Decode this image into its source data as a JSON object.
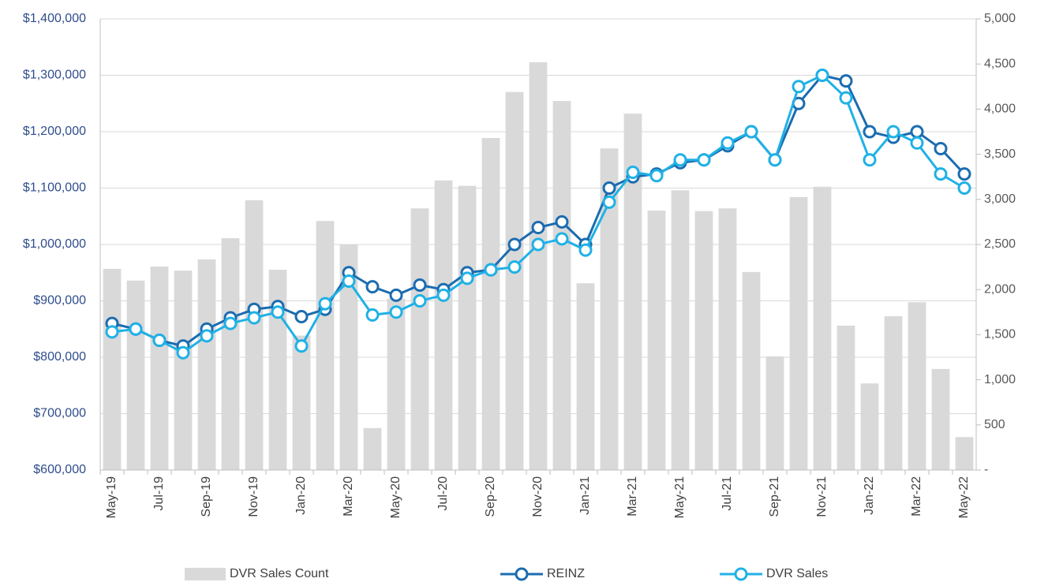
{
  "chart_data": {
    "type": "combo",
    "categories": [
      "May-19",
      null,
      "Jul-19",
      null,
      "Sep-19",
      null,
      "Nov-19",
      null,
      "Jan-20",
      null,
      "Mar-20",
      null,
      "May-20",
      null,
      "Jul-20",
      null,
      "Sep-20",
      null,
      "Nov-20",
      null,
      "Jan-21",
      null,
      "Mar-21",
      null,
      "May-21",
      null,
      "Jul-21",
      null,
      "Sep-21",
      null,
      "Nov-21",
      null,
      "Jan-22",
      null,
      "Mar-22",
      null,
      "May-22"
    ],
    "series": [
      {
        "name": "DVR Sales Count",
        "type": "bar",
        "axis": "y2",
        "color": "#d9d9d9",
        "values": [
          2230,
          2100,
          2255,
          2210,
          2335,
          2570,
          2990,
          2220,
          1490,
          2760,
          2500,
          465,
          1900,
          2900,
          3210,
          3150,
          3680,
          4190,
          4520,
          4090,
          2070,
          3565,
          3950,
          2875,
          3100,
          2870,
          2900,
          2195,
          1260,
          3025,
          3140,
          1600,
          960,
          1705,
          1860,
          1120,
          365
        ]
      },
      {
        "name": "REINZ",
        "type": "line",
        "axis": "y",
        "color": "#1b6cb0",
        "values": [
          860000,
          850000,
          830000,
          820000,
          850000,
          870000,
          885000,
          890000,
          872000,
          885000,
          950000,
          925000,
          910000,
          928000,
          920000,
          950000,
          955000,
          1000000,
          1030000,
          1040000,
          1000000,
          1100000,
          1120000,
          1125000,
          1145000,
          1150000,
          1175000,
          1200000,
          1150000,
          1250000,
          1300000,
          1290000,
          1200000,
          1190000,
          1200000,
          1170000,
          1125000
        ]
      },
      {
        "name": "DVR Sales",
        "type": "line",
        "axis": "y",
        "color": "#1fb1e6",
        "values": [
          845000,
          850000,
          830000,
          808000,
          838000,
          860000,
          870000,
          880000,
          820000,
          895000,
          935000,
          875000,
          880000,
          900000,
          910000,
          940000,
          955000,
          960000,
          1000000,
          1010000,
          990000,
          1075000,
          1128000,
          1122000,
          1150000,
          1150000,
          1180000,
          1200000,
          1150000,
          1280000,
          1300000,
          1260000,
          1150000,
          1200000,
          1180000,
          1125000,
          1100000
        ]
      }
    ],
    "ylim": [
      600000,
      1400000
    ],
    "yticks": [
      {
        "value": 600000,
        "label": "$600,000"
      },
      {
        "value": 700000,
        "label": "$700,000"
      },
      {
        "value": 800000,
        "label": "$800,000"
      },
      {
        "value": 900000,
        "label": "$900,000"
      },
      {
        "value": 1000000,
        "label": "$1,000,000"
      },
      {
        "value": 1100000,
        "label": "$1,100,000"
      },
      {
        "value": 1200000,
        "label": "$1,200,000"
      },
      {
        "value": 1300000,
        "label": "$1,300,000"
      },
      {
        "value": 1400000,
        "label": "$1,400,000"
      }
    ],
    "y2lim": [
      0,
      5000
    ],
    "y2ticks": [
      {
        "value": 0,
        "label": "-"
      },
      500,
      {
        "value": 1000,
        "label": "1,000"
      },
      {
        "value": 1500,
        "label": "1,500"
      },
      {
        "value": 2000,
        "label": "2,000"
      },
      {
        "value": 2500,
        "label": "2,500"
      },
      {
        "value": 3000,
        "label": "3,000"
      },
      {
        "value": 3500,
        "label": "3,500"
      },
      {
        "value": 4000,
        "label": "4,000"
      },
      {
        "value": 4500,
        "label": "4,500"
      },
      {
        "value": 5000,
        "label": "5,000"
      }
    ],
    "grid": true,
    "legend": "bottom"
  }
}
